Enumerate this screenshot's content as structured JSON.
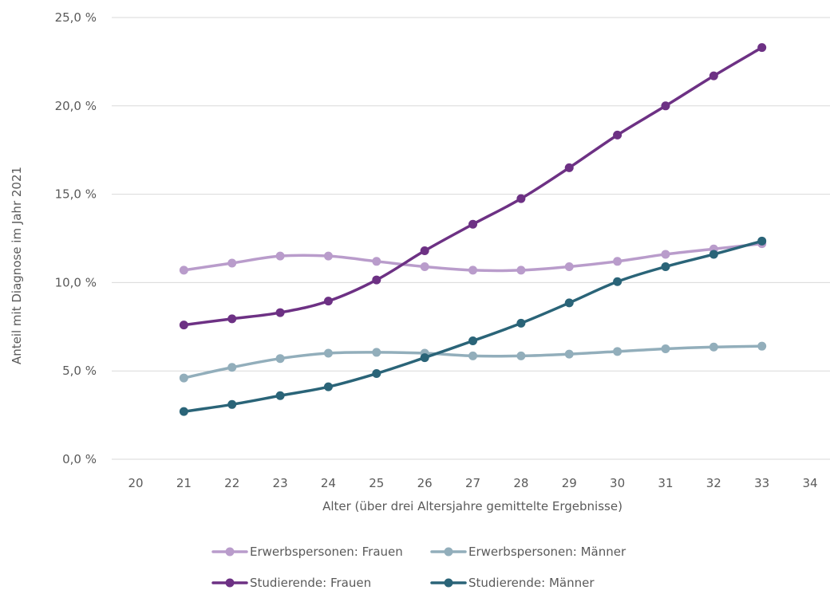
{
  "chart_data": {
    "type": "line",
    "xlabel": "Alter (über drei Altersjahre gemittelte Ergebnisse)",
    "ylabel": "Anteil mit Diagnose im Jahr 2021",
    "x_ticks": [
      "20",
      "21",
      "22",
      "23",
      "24",
      "25",
      "26",
      "27",
      "28",
      "29",
      "30",
      "31",
      "32",
      "33",
      "34"
    ],
    "y_ticks": [
      "0,0 %",
      "5,0 %",
      "10,0 %",
      "15,0 %",
      "20,0 %",
      "25,0 %"
    ],
    "xlim": [
      20,
      34
    ],
    "ylim": [
      0,
      25
    ],
    "grid": "horizontal",
    "legend_position": "bottom",
    "x": [
      21,
      22,
      23,
      24,
      25,
      26,
      27,
      28,
      29,
      30,
      31,
      32,
      33
    ],
    "series": [
      {
        "name": "Erwerbspersonen: Frauen",
        "color": "#b99ccb",
        "values": [
          10.7,
          11.1,
          11.5,
          11.5,
          11.2,
          10.9,
          10.7,
          10.7,
          10.9,
          11.2,
          11.6,
          11.9,
          12.2
        ]
      },
      {
        "name": "Erwerbspersonen: Männer",
        "color": "#92aebb",
        "values": [
          4.6,
          5.2,
          5.7,
          6.0,
          6.05,
          6.0,
          5.85,
          5.85,
          5.95,
          6.1,
          6.25,
          6.35,
          6.4
        ]
      },
      {
        "name": "Studierende: Frauen",
        "color": "#6d3184",
        "values": [
          7.6,
          7.95,
          8.3,
          8.95,
          10.15,
          11.8,
          13.3,
          14.75,
          16.5,
          18.35,
          20.0,
          21.7,
          23.3
        ]
      },
      {
        "name": "Studierende: Männer",
        "color": "#2a6478",
        "values": [
          2.7,
          3.1,
          3.6,
          4.1,
          4.85,
          5.75,
          6.7,
          7.7,
          8.85,
          10.05,
          10.9,
          11.6,
          12.35
        ]
      }
    ]
  }
}
